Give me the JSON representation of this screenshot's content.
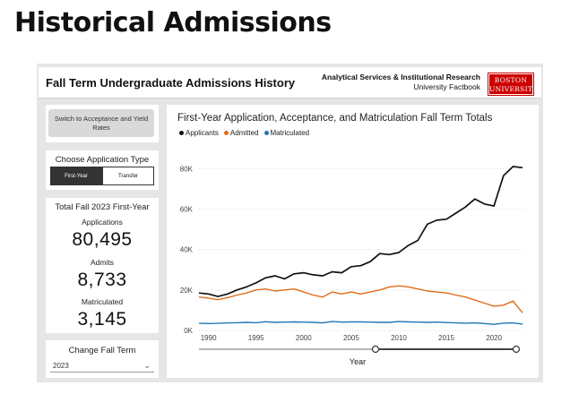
{
  "page": {
    "title": "Historical Admissions"
  },
  "header": {
    "report_title": "Fall Term Undergraduate Admissions History",
    "org_line1": "Analytical Services & Institutional Research",
    "org_line2": "University Factbook",
    "logo_line1": "BOSTON",
    "logo_line2": "UNIVERSITY"
  },
  "left_panel": {
    "switch_button": "Switch to Acceptance and Yield Rates",
    "app_type": {
      "heading": "Choose Application Type",
      "options": [
        "First-Year",
        "Transfer"
      ],
      "selected": "First-Year"
    },
    "stats": {
      "heading": "Total Fall 2023 First-Year",
      "applications_label": "Applications",
      "applications_value": "80,495",
      "admits_label": "Admits",
      "admits_value": "8,733",
      "matriculated_label": "Matriculated",
      "matriculated_value": "3,145"
    },
    "term": {
      "heading": "Change Fall Term",
      "selected": "2023"
    }
  },
  "colors": {
    "applicants": "#111111",
    "admitted": "#e06c1a",
    "matriculated": "#1f77b4",
    "logo": "#cc0000"
  },
  "chart_data": {
    "type": "line",
    "title": "First-Year Application, Acceptance, and Matriculation Fall Term Totals",
    "xlabel": "Year",
    "ylabel": "",
    "x": [
      1989,
      1990,
      1991,
      1992,
      1993,
      1994,
      1995,
      1996,
      1997,
      1998,
      1999,
      2000,
      2001,
      2002,
      2003,
      2004,
      2005,
      2006,
      2007,
      2008,
      2009,
      2010,
      2011,
      2012,
      2013,
      2014,
      2015,
      2016,
      2017,
      2018,
      2019,
      2020,
      2021,
      2022,
      2023
    ],
    "xlim": [
      1989,
      2023
    ],
    "ylim": [
      0,
      85000
    ],
    "x_ticks": [
      1990,
      1995,
      2000,
      2005,
      2010,
      2015,
      2020
    ],
    "y_ticks": [
      0,
      20000,
      40000,
      60000,
      80000
    ],
    "y_tick_labels": [
      "0K",
      "20K",
      "40K",
      "60K",
      "80K"
    ],
    "legend_position": "top-left",
    "series": [
      {
        "name": "Applicants",
        "color": "#111111",
        "values": [
          18500,
          18000,
          16800,
          18000,
          20000,
          21500,
          23500,
          26000,
          27000,
          25500,
          28000,
          28500,
          27500,
          27000,
          29000,
          28500,
          31500,
          32000,
          34000,
          38000,
          37500,
          38500,
          42000,
          44500,
          52500,
          54500,
          55000,
          58000,
          61000,
          65000,
          62500,
          61500,
          76500,
          81000,
          80495
        ]
      },
      {
        "name": "Admitted",
        "color": "#e06c1a",
        "values": [
          16500,
          16000,
          15200,
          16200,
          17500,
          18500,
          20000,
          20500,
          19500,
          20000,
          20500,
          19000,
          17500,
          16500,
          19000,
          18000,
          19000,
          18000,
          19000,
          20000,
          21500,
          22000,
          21500,
          20500,
          19500,
          19000,
          18500,
          17500,
          16500,
          15000,
          13500,
          12000,
          12500,
          14500,
          8733
        ]
      },
      {
        "name": "Matriculated",
        "color": "#1f77b4",
        "values": [
          3500,
          3400,
          3500,
          3700,
          3800,
          4000,
          3800,
          4300,
          4000,
          4100,
          4200,
          4100,
          4000,
          3700,
          4400,
          4100,
          4200,
          4200,
          4100,
          4000,
          4000,
          4400,
          4200,
          4100,
          4000,
          4100,
          3900,
          3700,
          3600,
          3700,
          3400,
          3000,
          3600,
          3700,
          3145
        ]
      }
    ]
  }
}
